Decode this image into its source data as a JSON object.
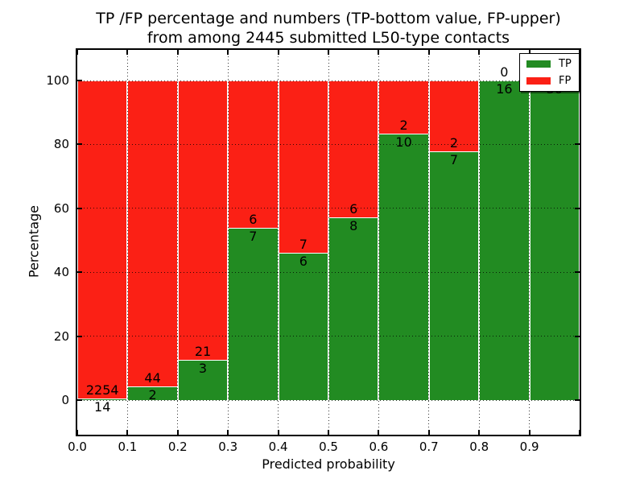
{
  "figure": {
    "title_line1": "TP /FP percentage and numbers (TP-bottom value, FP-upper)",
    "title_line2": "from among 2445 submitted L50-type contacts",
    "xlabel": "Predicted probability",
    "ylabel": "Percentage"
  },
  "chart_data": {
    "type": "bar",
    "subtype": "stacked-percentage-histogram",
    "title": "TP /FP percentage and numbers (TP-bottom value, FP-upper) from among 2445 submitted L50-type contacts",
    "xlabel": "Predicted probability",
    "ylabel": "Percentage",
    "total_submitted": 2445,
    "bin_width": 0.1,
    "bin_starts": [
      0.0,
      0.1,
      0.2,
      0.3,
      0.4,
      0.5,
      0.6,
      0.7,
      0.8,
      0.9
    ],
    "xtick_labels": [
      "0.0",
      "0.1",
      "0.2",
      "0.3",
      "0.4",
      "0.5",
      "0.6",
      "0.7",
      "0.8",
      "0.9"
    ],
    "ytick_values": [
      0,
      20,
      40,
      60,
      80,
      100
    ],
    "ytick_labels": [
      "0",
      "20",
      "40",
      "60",
      "80",
      "100"
    ],
    "xlim": [
      0.0,
      1.0
    ],
    "ylim": [
      -11,
      110
    ],
    "grid": "dotted",
    "legend_position": "upper-right",
    "legend": {
      "entries": [
        {
          "label": "TP",
          "color": "#228b22"
        },
        {
          "label": "FP",
          "color": "#fb2015"
        }
      ]
    },
    "series": [
      {
        "name": "TP",
        "stack_position": "bottom",
        "color": "#228b22",
        "counts": [
          14,
          2,
          3,
          7,
          6,
          8,
          10,
          7,
          16,
          30
        ]
      },
      {
        "name": "FP",
        "stack_position": "top",
        "color": "#fb2015",
        "counts": [
          2254,
          44,
          21,
          6,
          7,
          6,
          2,
          2,
          0,
          0
        ]
      }
    ],
    "tp_percentages": [
      0.62,
      4.35,
      12.5,
      53.85,
      46.15,
      57.14,
      83.33,
      77.78,
      100,
      100
    ]
  }
}
